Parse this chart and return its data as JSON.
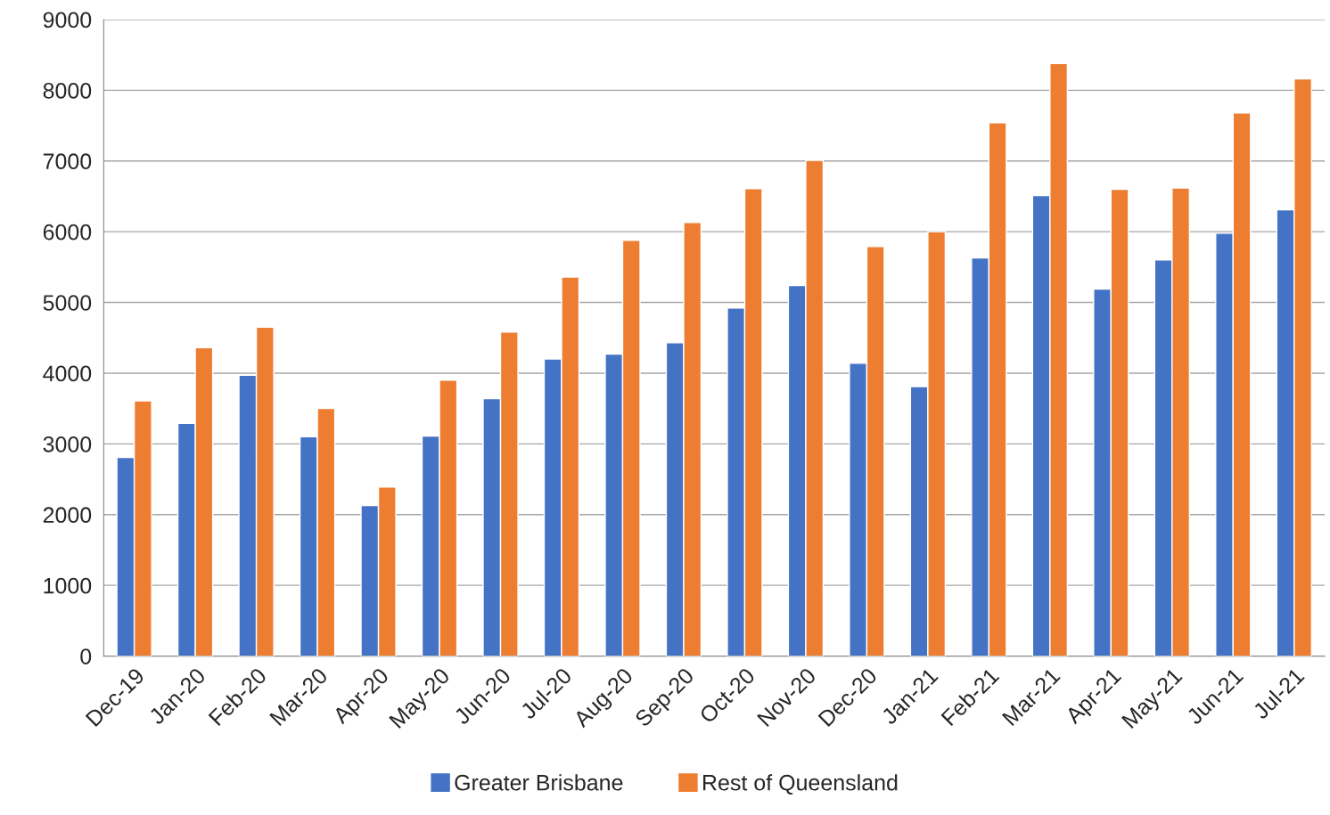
{
  "chart_data": {
    "type": "bar",
    "categories": [
      "Dec-19",
      "Jan-20",
      "Feb-20",
      "Mar-20",
      "Apr-20",
      "May-20",
      "Jun-20",
      "Jul-20",
      "Aug-20",
      "Sep-20",
      "Oct-20",
      "Nov-20",
      "Dec-20",
      "Jan-21",
      "Feb-21",
      "Mar-21",
      "Apr-21",
      "May-21",
      "Jun-21",
      "Jul-21"
    ],
    "series": [
      {
        "name": "Greater Brisbane",
        "color": "#4472c4",
        "values": [
          2810,
          3290,
          3970,
          3100,
          2130,
          3110,
          3640,
          4200,
          4270,
          4430,
          4920,
          5240,
          4140,
          3810,
          5630,
          6510,
          5190,
          5600,
          5980,
          6310
        ]
      },
      {
        "name": "Rest of Queensland",
        "color": "#ed7d31",
        "values": [
          3610,
          4360,
          4650,
          3500,
          2390,
          3900,
          4580,
          5360,
          5880,
          6130,
          6610,
          7010,
          5790,
          6000,
          7540,
          8380,
          6600,
          6620,
          7680,
          8160
        ]
      }
    ],
    "ylim": [
      0,
      9000
    ],
    "yticks": [
      0,
      1000,
      2000,
      3000,
      4000,
      5000,
      6000,
      7000,
      8000,
      9000
    ],
    "grid": "y",
    "legend": "bottom"
  }
}
